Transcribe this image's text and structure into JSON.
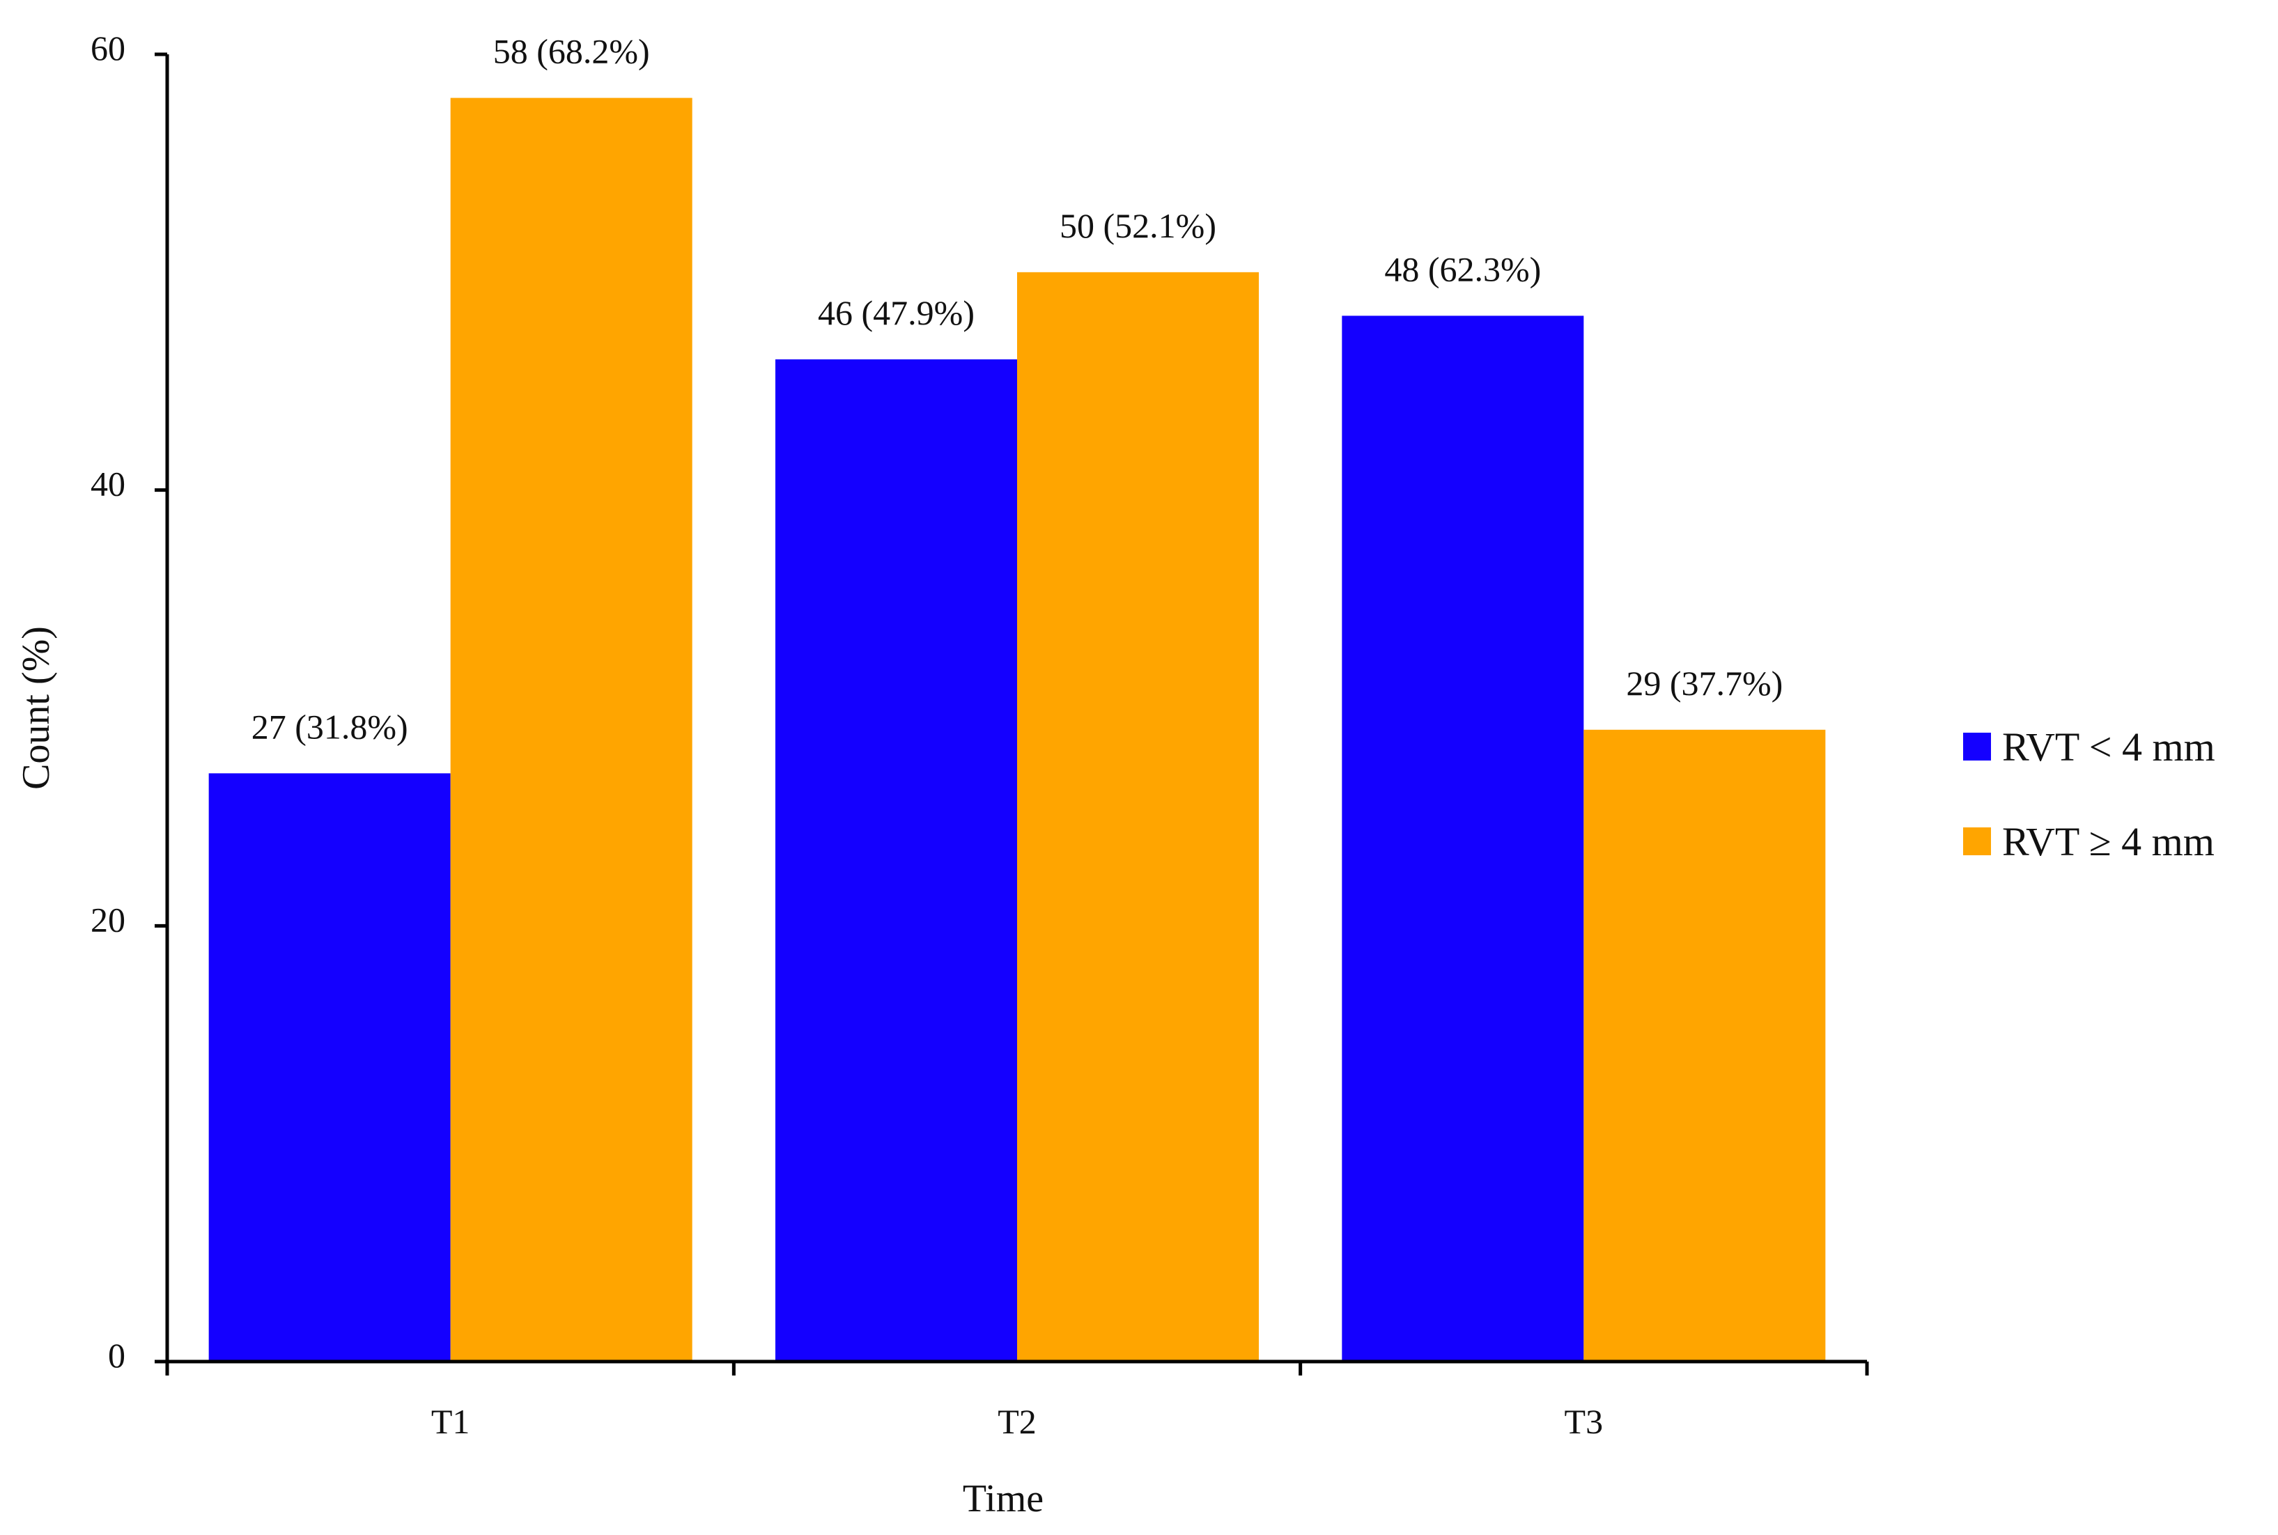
{
  "chart_data": {
    "type": "bar",
    "title": "",
    "xlabel": "Time",
    "ylabel": "Count (%)",
    "categories": [
      "T1",
      "T2",
      "T3"
    ],
    "ylim": [
      0,
      60
    ],
    "yticks": [
      0,
      20,
      40,
      60
    ],
    "grid": false,
    "legend_position": "right",
    "series": [
      {
        "name": "RVT < 4 mm",
        "color": "#1400FF",
        "values": [
          27,
          46,
          48
        ],
        "labels": [
          "27 (31.8%)",
          "46 (47.9%)",
          "48 (62.3%)"
        ]
      },
      {
        "name": "RVT ≥ 4 mm",
        "color": "#FFA500",
        "values": [
          58,
          50,
          29
        ],
        "labels": [
          "58 (68.2%)",
          "50 (52.1%)",
          "29 (37.7%)"
        ]
      }
    ]
  }
}
